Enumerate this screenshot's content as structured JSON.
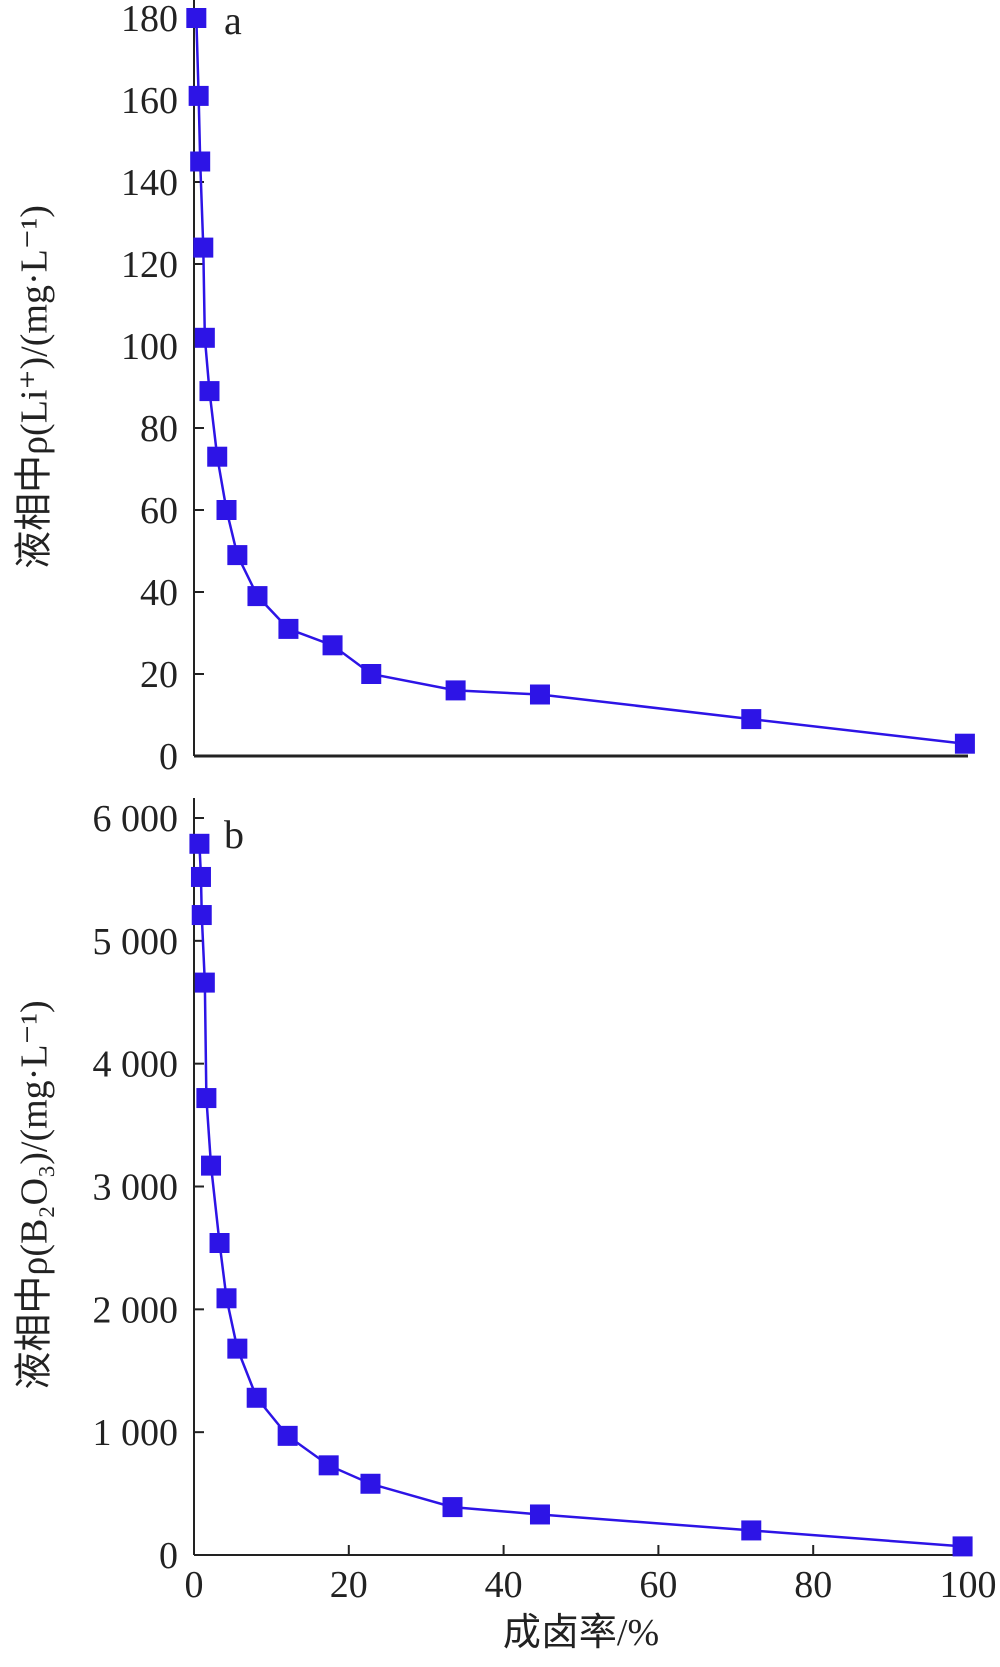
{
  "chart_data": [
    {
      "type": "line",
      "panel_label": "a",
      "ylabel": "液相中ρ(Li⁺)/(mg·L⁻¹)",
      "xlabel": "",
      "xlim": [
        0,
        100
      ],
      "ylim": [
        0,
        180
      ],
      "yticks": [
        0,
        20,
        40,
        60,
        80,
        100,
        120,
        140,
        160,
        180
      ],
      "ytick_labels": [
        "0",
        "20",
        "40",
        "60",
        "80",
        "100",
        "120",
        "140",
        "160",
        "180"
      ],
      "series": [
        {
          "color": "#2d14e6",
          "marker": "square",
          "x": [
            0.3,
            0.6,
            0.8,
            1.2,
            1.4,
            2.0,
            3.0,
            4.2,
            5.6,
            8.2,
            12.2,
            17.9,
            22.9,
            33.8,
            44.7,
            72.0,
            99.6
          ],
          "y": [
            180,
            161,
            145,
            124,
            102,
            89,
            73,
            60,
            49,
            39,
            31,
            27,
            20,
            16,
            15,
            9,
            3
          ]
        }
      ]
    },
    {
      "type": "line",
      "panel_label": "b",
      "ylabel": "液相中ρ(B₂O₃)/(mg·L⁻¹)",
      "xlabel": "成卤率/%",
      "xlim": [
        0,
        100
      ],
      "ylim": [
        0,
        6000
      ],
      "yticks": [
        0,
        1000,
        2000,
        3000,
        4000,
        5000,
        6000
      ],
      "ytick_labels": [
        "0",
        "1 000",
        "2 000",
        "3 000",
        "4 000",
        "5 000",
        "6 000"
      ],
      "xticks": [
        0,
        20,
        40,
        60,
        80,
        100
      ],
      "xtick_labels": [
        "0",
        "20",
        "40",
        "60",
        "80",
        "100"
      ],
      "series": [
        {
          "color": "#2d14e6",
          "marker": "square",
          "x": [
            0.7,
            0.9,
            1.0,
            1.4,
            1.6,
            2.2,
            3.3,
            4.2,
            5.6,
            8.1,
            12.1,
            17.4,
            22.8,
            33.4,
            44.7,
            72.0,
            99.3
          ],
          "y": [
            5790,
            5520,
            5210,
            4660,
            3720,
            3170,
            2540,
            2090,
            1680,
            1280,
            970,
            730,
            580,
            390,
            330,
            200,
            70
          ]
        }
      ]
    }
  ]
}
